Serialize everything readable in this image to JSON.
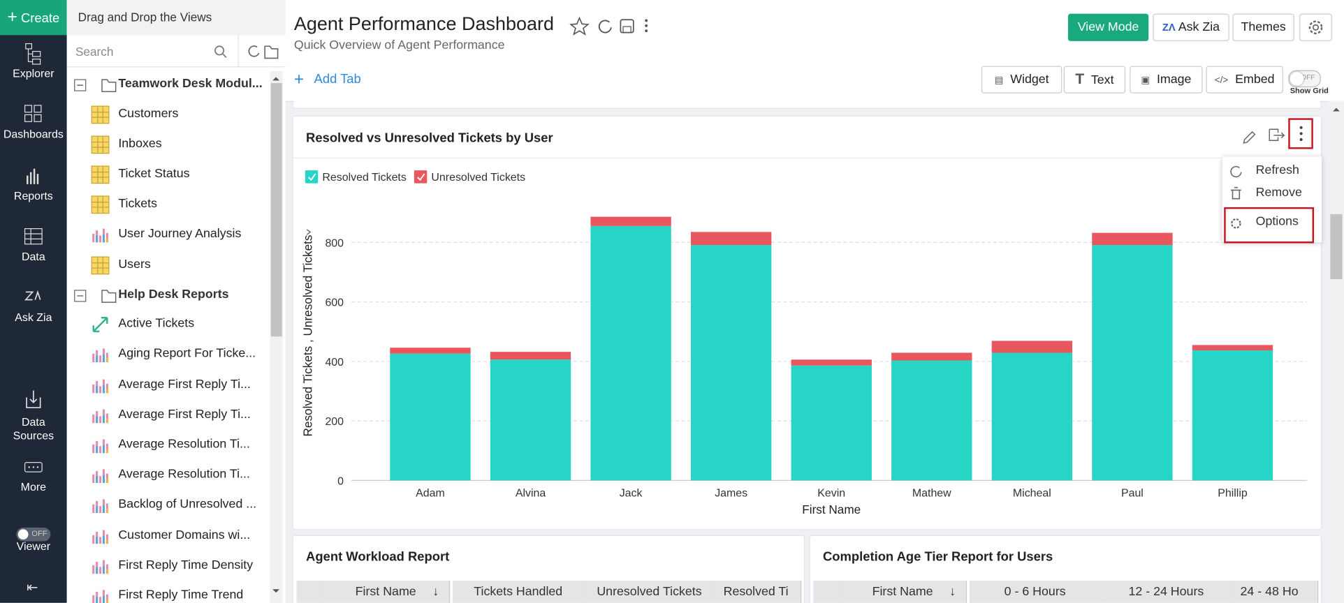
{
  "sidebar": {
    "create": "Create",
    "items": [
      "Explorer",
      "Dashboards",
      "Reports",
      "Data",
      "Ask Zia",
      "Data Sources",
      "More",
      "Viewer"
    ],
    "viewer_toggle": "OFF"
  },
  "explorer": {
    "title": "Drag and Drop the Views",
    "search_placeholder": "Search",
    "folders": [
      {
        "name": "Teamwork Desk Modul...",
        "items": [
          "Customers",
          "Inboxes",
          "Ticket Status",
          "Tickets",
          "User Journey Analysis",
          "Users"
        ]
      },
      {
        "name": "Help Desk Reports",
        "items": [
          "Active Tickets",
          "Aging Report For Ticke...",
          "Average First Reply Ti...",
          "Average First Reply Ti...",
          "Average Resolution Ti...",
          "Average Resolution Ti...",
          "Backlog of Unresolved ...",
          "Customer Domains wi...",
          "First Reply Time Density",
          "First Reply Time Trend"
        ]
      }
    ]
  },
  "header": {
    "title": "Agent Performance Dashboard",
    "subtitle": "Quick Overview of Agent Performance",
    "buttons": [
      "View Mode",
      "Ask Zia",
      "Themes"
    ],
    "add_tab": "Add Tab",
    "tools": [
      "Widget",
      "Text",
      "Image",
      "Embed"
    ],
    "grid_toggle": "OFF",
    "show_grid": "Show Grid"
  },
  "menu": [
    "Refresh",
    "Remove",
    "Options"
  ],
  "chart_data": {
    "type": "bar",
    "stacked": true,
    "title": "Resolved vs Unresolved Tickets by User",
    "x_label": "First Name",
    "y_label": "Resolved Tickets , Unresolved Tickets",
    "categories": [
      "Adam",
      "Alvina",
      "Jack",
      "James",
      "Kevin",
      "Mathew",
      "Micheal",
      "Paul",
      "Phillip"
    ],
    "series": [
      {
        "name": "Resolved Tickets",
        "color": "#26d5c6",
        "values": [
          426,
          406,
          855,
          791,
          386,
          403,
          429,
          791,
          437
        ]
      },
      {
        "name": "Unresolved Tickets",
        "color": "#e8575d",
        "values": [
          20,
          26,
          31,
          44,
          20,
          26,
          40,
          41,
          18
        ]
      }
    ],
    "ylim": [
      0,
      900
    ],
    "yticks": [
      0,
      200,
      400,
      600,
      800
    ],
    "grid": true
  },
  "tables": [
    {
      "title": "Agent Workload Report",
      "columns": [
        "First Name",
        "Tickets Handled",
        "Unresolved Tickets",
        "Resolved Ti"
      ]
    },
    {
      "title": "Completion Age Tier Report for Users",
      "columns": [
        "First Name",
        "0 - 6 Hours",
        "12 - 24 Hours",
        "24 - 48 Ho"
      ]
    }
  ]
}
